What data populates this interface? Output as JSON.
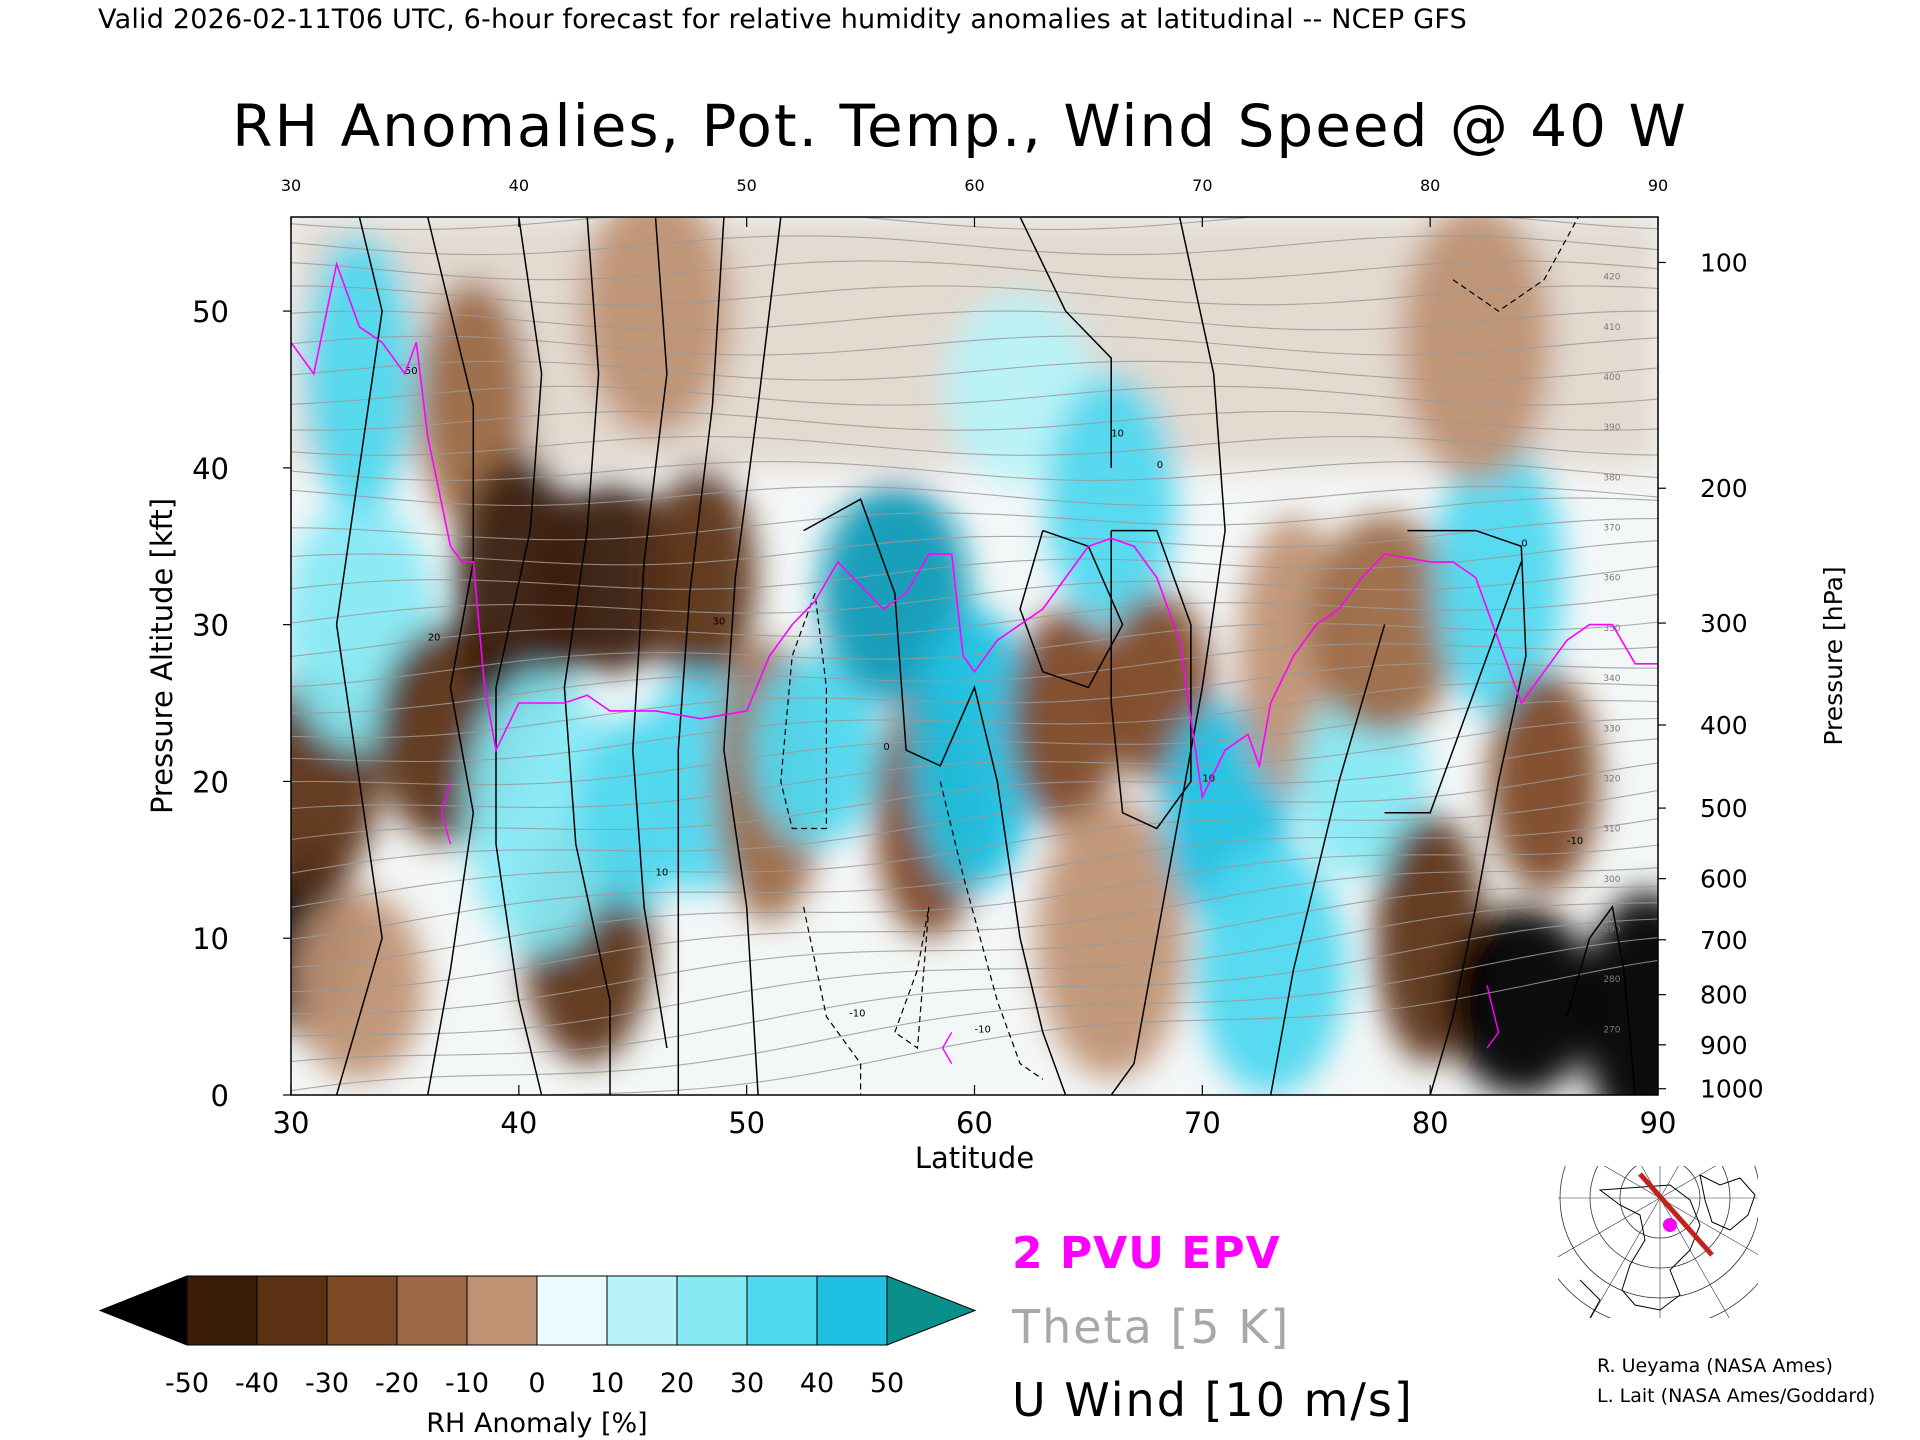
{
  "header": {
    "line": "Valid 2026-02-11T06 UTC, 6-hour forecast for relative humidity anomalies at latitudinal -- NCEP GFS"
  },
  "chart_data": {
    "type": "heatmap",
    "title": "RH Anomalies, Pot. Temp., Wind Speed @ 40 W",
    "xlabel": "Latitude",
    "ylabel": "Pressure Altitude [kft]",
    "y2label": "Pressure [hPa]",
    "xlim": [
      30,
      90
    ],
    "ylim": [
      0,
      56
    ],
    "x_ticks": [
      30,
      40,
      50,
      60,
      70,
      80,
      90
    ],
    "y_ticks": [
      0,
      10,
      20,
      30,
      40,
      50
    ],
    "pressure_ticks": [
      {
        "hPa": "100",
        "kft": 53.1
      },
      {
        "hPa": "200",
        "kft": 38.7
      },
      {
        "hPa": "300",
        "kft": 30.1
      },
      {
        "hPa": "400",
        "kft": 23.6
      },
      {
        "hPa": "500",
        "kft": 18.3
      },
      {
        "hPa": "600",
        "kft": 13.8
      },
      {
        "hPa": "700",
        "kft": 9.9
      },
      {
        "hPa": "800",
        "kft": 6.4
      },
      {
        "hPa": "900",
        "kft": 3.2
      },
      {
        "hPa": "1000",
        "kft": 0.4
      }
    ],
    "colorbar": {
      "label": "RH Anomaly [%]",
      "ticks": [
        "-50",
        "-40",
        "-30",
        "-20",
        "-10",
        "0",
        "10",
        "20",
        "30",
        "40",
        "50"
      ],
      "colors": [
        "#3a1c09",
        "#5c3215",
        "#7d4a26",
        "#9c6a46",
        "#bf9274",
        "#dfc0ab",
        "#e9fbfd",
        "#b8f3f9",
        "#86e9f4",
        "#4fd8ef",
        "#1fc0e1",
        "#0e9ab6"
      ],
      "low_extend": "#000000",
      "high_extend": "#0b8f8a"
    },
    "legend": [
      {
        "label": "2 PVU EPV",
        "color": "#ff00ff"
      },
      {
        "label": "Theta [5 K]",
        "color": "#a8a8a8"
      },
      {
        "label": "U Wind [10 m/s]",
        "color": "#000000"
      }
    ],
    "rh_anomaly_field": [
      {
        "lat": 30.5,
        "kft": 10,
        "anomaly": -55
      },
      {
        "lat": 31,
        "kft": 20,
        "anomaly": -40
      },
      {
        "lat": 33,
        "kft": 30,
        "anomaly": 20
      },
      {
        "lat": 33,
        "kft": 46,
        "anomaly": 30
      },
      {
        "lat": 33,
        "kft": 7,
        "anomaly": -10
      },
      {
        "lat": 37,
        "kft": 23,
        "anomaly": -40
      },
      {
        "lat": 38,
        "kft": 44,
        "anomaly": -20
      },
      {
        "lat": 40,
        "kft": 32,
        "anomaly": -45
      },
      {
        "lat": 44,
        "kft": 33,
        "anomaly": -45
      },
      {
        "lat": 48,
        "kft": 33,
        "anomaly": -40
      },
      {
        "lat": 43,
        "kft": 10,
        "anomaly": -40
      },
      {
        "lat": 41,
        "kft": 18,
        "anomaly": 25
      },
      {
        "lat": 45,
        "kft": 18,
        "anomaly": 30
      },
      {
        "lat": 48,
        "kft": 20,
        "anomaly": 35
      },
      {
        "lat": 46,
        "kft": 50,
        "anomaly": -5
      },
      {
        "lat": 51,
        "kft": 20,
        "anomaly": -20
      },
      {
        "lat": 53,
        "kft": 22,
        "anomaly": 35
      },
      {
        "lat": 56.5,
        "kft": 32,
        "anomaly": 50
      },
      {
        "lat": 58,
        "kft": 18,
        "anomaly": -25
      },
      {
        "lat": 60,
        "kft": 22,
        "anomaly": 45
      },
      {
        "lat": 62,
        "kft": 45,
        "anomaly": 10
      },
      {
        "lat": 64,
        "kft": 24,
        "anomaly": -30
      },
      {
        "lat": 66,
        "kft": 38,
        "anomaly": 30
      },
      {
        "lat": 66,
        "kft": 10,
        "anomaly": -10
      },
      {
        "lat": 68,
        "kft": 26,
        "anomaly": -25
      },
      {
        "lat": 71,
        "kft": 18,
        "anomaly": 40
      },
      {
        "lat": 73,
        "kft": 8,
        "anomaly": 35
      },
      {
        "lat": 74,
        "kft": 28,
        "anomaly": -10
      },
      {
        "lat": 77,
        "kft": 20,
        "anomaly": 20
      },
      {
        "lat": 78,
        "kft": 30,
        "anomaly": -20
      },
      {
        "lat": 80,
        "kft": 10,
        "anomaly": -40
      },
      {
        "lat": 83,
        "kft": 33,
        "anomaly": 35
      },
      {
        "lat": 84,
        "kft": 6,
        "anomaly": -55
      },
      {
        "lat": 85,
        "kft": 20,
        "anomaly": -30
      },
      {
        "lat": 89.5,
        "kft": 5,
        "anomaly": -55
      },
      {
        "lat": 82,
        "kft": 48,
        "anomaly": -5
      }
    ],
    "epv_2pvu": [
      {
        "lat": 30,
        "kft": 48
      },
      {
        "lat": 31,
        "kft": 46
      },
      {
        "lat": 32,
        "kft": 53
      },
      {
        "lat": 33,
        "kft": 49
      },
      {
        "lat": 34,
        "kft": 48
      },
      {
        "lat": 35,
        "kft": 46
      },
      {
        "lat": 35.5,
        "kft": 48
      },
      {
        "lat": 36,
        "kft": 42
      },
      {
        "lat": 37,
        "kft": 35
      },
      {
        "lat": 37.5,
        "kft": 34
      },
      {
        "lat": 38,
        "kft": 34
      },
      {
        "lat": 38.5,
        "kft": 26
      },
      {
        "lat": 39,
        "kft": 22
      },
      {
        "lat": 40,
        "kft": 25
      },
      {
        "lat": 42,
        "kft": 25
      },
      {
        "lat": 43,
        "kft": 25.5
      },
      {
        "lat": 44,
        "kft": 24.5
      },
      {
        "lat": 46,
        "kft": 24.5
      },
      {
        "lat": 48,
        "kft": 24
      },
      {
        "lat": 50,
        "kft": 24.5
      },
      {
        "lat": 51,
        "kft": 28
      },
      {
        "lat": 52,
        "kft": 30
      },
      {
        "lat": 53,
        "kft": 31.5
      },
      {
        "lat": 54,
        "kft": 34
      },
      {
        "lat": 55,
        "kft": 32.5
      },
      {
        "lat": 56,
        "kft": 31
      },
      {
        "lat": 57,
        "kft": 32
      },
      {
        "lat": 58,
        "kft": 34.5
      },
      {
        "lat": 59,
        "kft": 34.5
      },
      {
        "lat": 59.5,
        "kft": 28
      },
      {
        "lat": 60,
        "kft": 27
      },
      {
        "lat": 61,
        "kft": 29
      },
      {
        "lat": 62,
        "kft": 30
      },
      {
        "lat": 63,
        "kft": 31
      },
      {
        "lat": 64,
        "kft": 33
      },
      {
        "lat": 65,
        "kft": 35
      },
      {
        "lat": 66,
        "kft": 35.5
      },
      {
        "lat": 67,
        "kft": 35
      },
      {
        "lat": 68,
        "kft": 33
      },
      {
        "lat": 69,
        "kft": 29
      },
      {
        "lat": 69.5,
        "kft": 24
      },
      {
        "lat": 70,
        "kft": 19
      },
      {
        "lat": 71,
        "kft": 22
      },
      {
        "lat": 72,
        "kft": 23
      },
      {
        "lat": 72.5,
        "kft": 21
      },
      {
        "lat": 73,
        "kft": 25
      },
      {
        "lat": 74,
        "kft": 28
      },
      {
        "lat": 75,
        "kft": 30
      },
      {
        "lat": 76,
        "kft": 31
      },
      {
        "lat": 77,
        "kft": 33
      },
      {
        "lat": 78,
        "kft": 34.5
      },
      {
        "lat": 80,
        "kft": 34
      },
      {
        "lat": 81,
        "kft": 34
      },
      {
        "lat": 82,
        "kft": 33
      },
      {
        "lat": 83,
        "kft": 29
      },
      {
        "lat": 84,
        "kft": 25
      },
      {
        "lat": 85,
        "kft": 27
      },
      {
        "lat": 86,
        "kft": 29
      },
      {
        "lat": 87,
        "kft": 30
      },
      {
        "lat": 88,
        "kft": 30
      },
      {
        "lat": 89,
        "kft": 27.5
      },
      {
        "lat": 90,
        "kft": 27.5
      }
    ],
    "theta_label_values": [
      "270",
      "280",
      "290",
      "300",
      "310",
      "320",
      "330",
      "340",
      "350",
      "360",
      "370",
      "380",
      "390",
      "400",
      "410",
      "420"
    ],
    "u_wind_label_values": [
      "-10",
      "0",
      "10",
      "20",
      "30",
      "50"
    ]
  },
  "inset_map": {
    "section_line_color": "#c0231c",
    "marker_color": "#ff00ff"
  },
  "credits": {
    "line1": "R. Ueyama (NASA Ames)",
    "line2": "L. Lait (NASA Ames/Goddard)"
  }
}
